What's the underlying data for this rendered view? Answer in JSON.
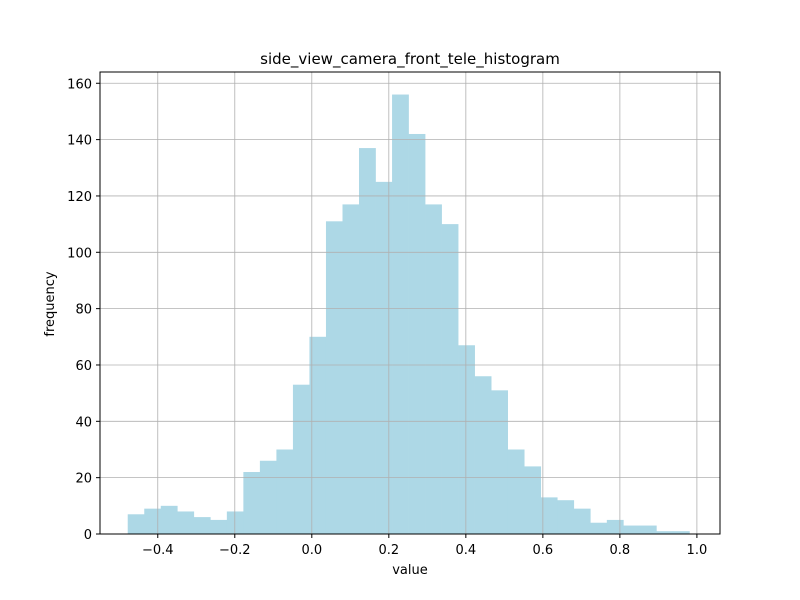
{
  "chart_data": {
    "type": "bar",
    "title": "side_view_camera_front_tele_histogram",
    "xlabel": "value",
    "ylabel": "frequency",
    "xlim": [
      -0.55,
      1.06
    ],
    "ylim": [
      0,
      164
    ],
    "grid": true,
    "bar_color": "#add8e6",
    "x_ticks": [
      -0.4,
      -0.2,
      0.0,
      0.2,
      0.4,
      0.6,
      0.8,
      1.0
    ],
    "x_tick_labels": [
      "−0.4",
      "−0.2",
      "0.0",
      "0.2",
      "0.4",
      "0.6",
      "0.8",
      "1.0"
    ],
    "y_ticks": [
      0,
      20,
      40,
      60,
      80,
      100,
      120,
      140,
      160
    ],
    "y_tick_labels": [
      "0",
      "20",
      "40",
      "60",
      "80",
      "100",
      "120",
      "140",
      "160"
    ],
    "bin_start": -0.478,
    "bin_width": 0.0429,
    "values": [
      7,
      9,
      10,
      8,
      6,
      5,
      8,
      22,
      26,
      30,
      53,
      70,
      111,
      117,
      137,
      125,
      156,
      142,
      117,
      110,
      67,
      56,
      51,
      30,
      24,
      13,
      12,
      9,
      4,
      5,
      3,
      3,
      1,
      1
    ]
  }
}
